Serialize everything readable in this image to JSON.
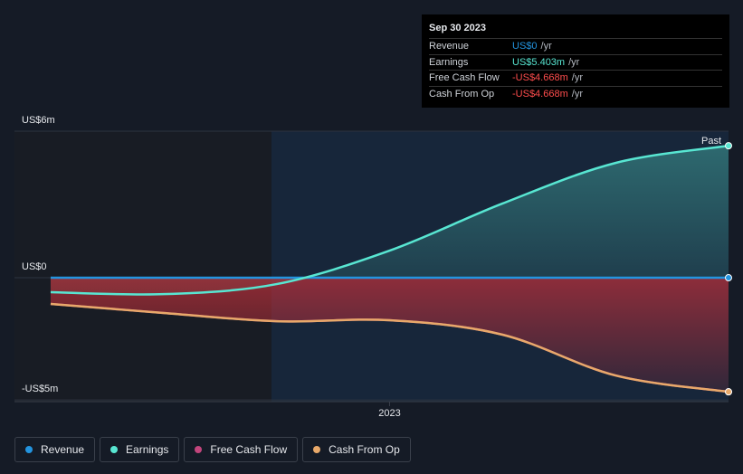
{
  "chart_data": {
    "type": "line",
    "x": [
      2022.25,
      2022.5,
      2022.75,
      2023.0,
      2023.25,
      2023.5,
      2023.75
    ],
    "xlim": [
      2022.17,
      2023.75
    ],
    "xticks": [
      2023
    ],
    "ylim": [
      -5.07,
      6
    ],
    "yticks": [
      {
        "value": 6,
        "label": "US$6m"
      },
      {
        "value": 0,
        "label": "US$0"
      },
      {
        "value": -5,
        "label": "-US$5m"
      }
    ],
    "annotation": "Past",
    "tooltip_date": "Sep 30 2023",
    "tooltip_unit": "/yr",
    "series": [
      {
        "name": "Revenue",
        "color": "#2394df",
        "values": [
          0,
          0,
          0,
          0,
          0,
          0,
          0
        ],
        "value_labels": [
          null,
          null,
          null,
          null,
          null,
          null,
          "US$0"
        ]
      },
      {
        "name": "Earnings",
        "color": "#58e6d2",
        "values": [
          -0.59,
          -0.67,
          -0.26,
          1.11,
          3.04,
          4.7,
          5.403
        ],
        "value_labels": [
          null,
          null,
          null,
          null,
          null,
          null,
          "US$5.403m"
        ]
      },
      {
        "name": "Free Cash Flow",
        "color": "#c2457c",
        "values": [
          -1.07,
          -1.44,
          -1.78,
          -1.74,
          -2.33,
          -4.0,
          -4.668
        ],
        "value_labels": [
          null,
          null,
          null,
          null,
          null,
          null,
          "-US$4.668m"
        ]
      },
      {
        "name": "Cash From Op",
        "color": "#e8a96a",
        "values": [
          -1.07,
          -1.44,
          -1.78,
          -1.74,
          -2.33,
          -4.0,
          -4.668
        ],
        "value_labels": [
          null,
          null,
          null,
          null,
          null,
          null,
          "-US$4.668m"
        ]
      }
    ]
  }
}
